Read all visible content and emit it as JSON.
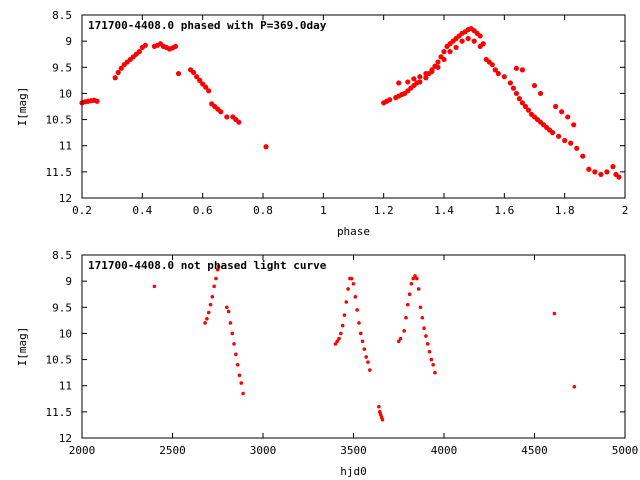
{
  "chart_data": [
    {
      "type": "scatter",
      "title": "171700-4408.0 phased with P=369.0day",
      "xlabel": "phase",
      "ylabel": "I[mag]",
      "xlim": [
        0.2,
        2.0
      ],
      "ylim": [
        12.0,
        8.5
      ],
      "y_inverted": true,
      "x_ticks": [
        "0.2",
        "0.4",
        "0.6",
        "0.8",
        "1",
        "1.2",
        "1.4",
        "1.6",
        "1.8",
        "2"
      ],
      "y_ticks": [
        "8.5",
        "9",
        "9.5",
        "10",
        "10.5",
        "11",
        "11.5",
        "12"
      ],
      "marker_color": "#ff0000",
      "series": [
        {
          "x": [
            0.2,
            0.21,
            0.22,
            0.23,
            0.24,
            0.25,
            0.31,
            0.32,
            0.33,
            0.34,
            0.35,
            0.36,
            0.37,
            0.38,
            0.39,
            0.4,
            0.41,
            0.44,
            0.45,
            0.46,
            0.47,
            0.48,
            0.49,
            0.5,
            0.51,
            0.52,
            0.56,
            0.57,
            0.58,
            0.59,
            0.6,
            0.61,
            0.62,
            0.63,
            0.64,
            0.65,
            0.66,
            0.68,
            0.7,
            0.71,
            0.72,
            0.81,
            1.2,
            1.21,
            1.22,
            1.24,
            1.25,
            1.26,
            1.27,
            1.28,
            1.29,
            1.3,
            1.31,
            1.32,
            1.34,
            1.35,
            1.36,
            1.37,
            1.38,
            1.39,
            1.4,
            1.41,
            1.42,
            1.43,
            1.44,
            1.45,
            1.46,
            1.47,
            1.48,
            1.49,
            1.5,
            1.51,
            1.52,
            1.53,
            1.54,
            1.55,
            1.56,
            1.57,
            1.58,
            1.6,
            1.62,
            1.63,
            1.64,
            1.65,
            1.66,
            1.67,
            1.68,
            1.69,
            1.7,
            1.71,
            1.72,
            1.73,
            1.74,
            1.75,
            1.76,
            1.78,
            1.8,
            1.82,
            1.84,
            1.86,
            1.88,
            1.9,
            1.92,
            1.94,
            1.96,
            1.97,
            1.98,
            1.25,
            1.28,
            1.3,
            1.32,
            1.34,
            1.36,
            1.38,
            1.4,
            1.42,
            1.44,
            1.46,
            1.48,
            1.5,
            1.52,
            1.64,
            1.66,
            1.7,
            1.72,
            1.77,
            1.79,
            1.81,
            1.83
          ],
          "y": [
            10.18,
            10.16,
            10.15,
            10.14,
            10.13,
            10.15,
            9.7,
            9.6,
            9.52,
            9.45,
            9.4,
            9.35,
            9.3,
            9.25,
            9.2,
            9.12,
            9.08,
            9.1,
            9.08,
            9.05,
            9.1,
            9.12,
            9.15,
            9.13,
            9.1,
            9.62,
            9.55,
            9.6,
            9.68,
            9.75,
            9.82,
            9.88,
            9.95,
            10.2,
            10.25,
            10.3,
            10.35,
            10.45,
            10.45,
            10.5,
            10.55,
            11.02,
            10.18,
            10.15,
            10.12,
            10.08,
            10.05,
            10.02,
            10.0,
            9.95,
            9.9,
            9.85,
            9.8,
            9.78,
            9.7,
            9.62,
            9.55,
            9.48,
            9.4,
            9.3,
            9.2,
            9.1,
            9.05,
            9.0,
            8.95,
            8.9,
            8.85,
            8.82,
            8.78,
            8.76,
            8.8,
            8.85,
            8.9,
            9.05,
            9.35,
            9.4,
            9.45,
            9.55,
            9.62,
            9.68,
            9.8,
            9.9,
            10.0,
            10.1,
            10.18,
            10.25,
            10.32,
            10.4,
            10.45,
            10.5,
            10.55,
            10.6,
            10.65,
            10.7,
            10.75,
            10.82,
            10.9,
            10.95,
            11.05,
            11.2,
            11.45,
            11.5,
            11.55,
            11.5,
            11.4,
            11.55,
            11.6,
            9.8,
            9.78,
            9.72,
            9.68,
            9.62,
            9.58,
            9.5,
            9.35,
            9.2,
            9.12,
            9.0,
            8.95,
            9.0,
            9.1,
            9.52,
            9.55,
            9.85,
            10.0,
            10.25,
            10.35,
            10.45,
            10.6
          ]
        }
      ]
    },
    {
      "type": "scatter",
      "title": "171700-4408.0 not phased light curve",
      "xlabel": "hjd0",
      "ylabel": "I[mag]",
      "xlim": [
        2000,
        5000
      ],
      "ylim": [
        12.0,
        8.5
      ],
      "y_inverted": true,
      "x_ticks": [
        "2000",
        "2500",
        "3000",
        "3500",
        "4000",
        "4500",
        "5000"
      ],
      "y_ticks": [
        "8.5",
        "9",
        "9.5",
        "10",
        "10.5",
        "11",
        "11.5",
        "12"
      ],
      "marker_color": "#ff0000",
      "series": [
        {
          "x": [
            2400,
            2680,
            2690,
            2700,
            2710,
            2720,
            2730,
            2740,
            2750,
            2755,
            2800,
            2810,
            2820,
            2830,
            2840,
            2850,
            2860,
            2870,
            2880,
            2890,
            3400,
            3410,
            3420,
            3430,
            3440,
            3450,
            3460,
            3470,
            3480,
            3490,
            3500,
            3510,
            3520,
            3530,
            3540,
            3550,
            3560,
            3570,
            3580,
            3590,
            3640,
            3645,
            3650,
            3655,
            3660,
            3750,
            3760,
            3780,
            3790,
            3800,
            3810,
            3820,
            3830,
            3840,
            3850,
            3860,
            3870,
            3880,
            3890,
            3900,
            3910,
            3920,
            3930,
            3940,
            3950,
            4610,
            4720
          ],
          "y": [
            9.1,
            9.8,
            9.72,
            9.6,
            9.45,
            9.3,
            9.1,
            8.95,
            8.78,
            8.72,
            9.5,
            9.58,
            9.8,
            10.0,
            10.2,
            10.4,
            10.6,
            10.8,
            10.95,
            11.15,
            10.2,
            10.15,
            10.1,
            10.0,
            9.85,
            9.65,
            9.4,
            9.15,
            8.95,
            8.95,
            9.05,
            9.3,
            9.55,
            9.8,
            10.0,
            10.15,
            10.3,
            10.45,
            10.55,
            10.7,
            11.4,
            11.5,
            11.55,
            11.6,
            11.65,
            10.15,
            10.1,
            9.95,
            9.7,
            9.45,
            9.25,
            9.05,
            8.95,
            8.9,
            8.95,
            9.15,
            9.5,
            9.7,
            9.9,
            10.05,
            10.2,
            10.35,
            10.5,
            10.6,
            10.75,
            9.62,
            11.02
          ]
        }
      ]
    }
  ]
}
